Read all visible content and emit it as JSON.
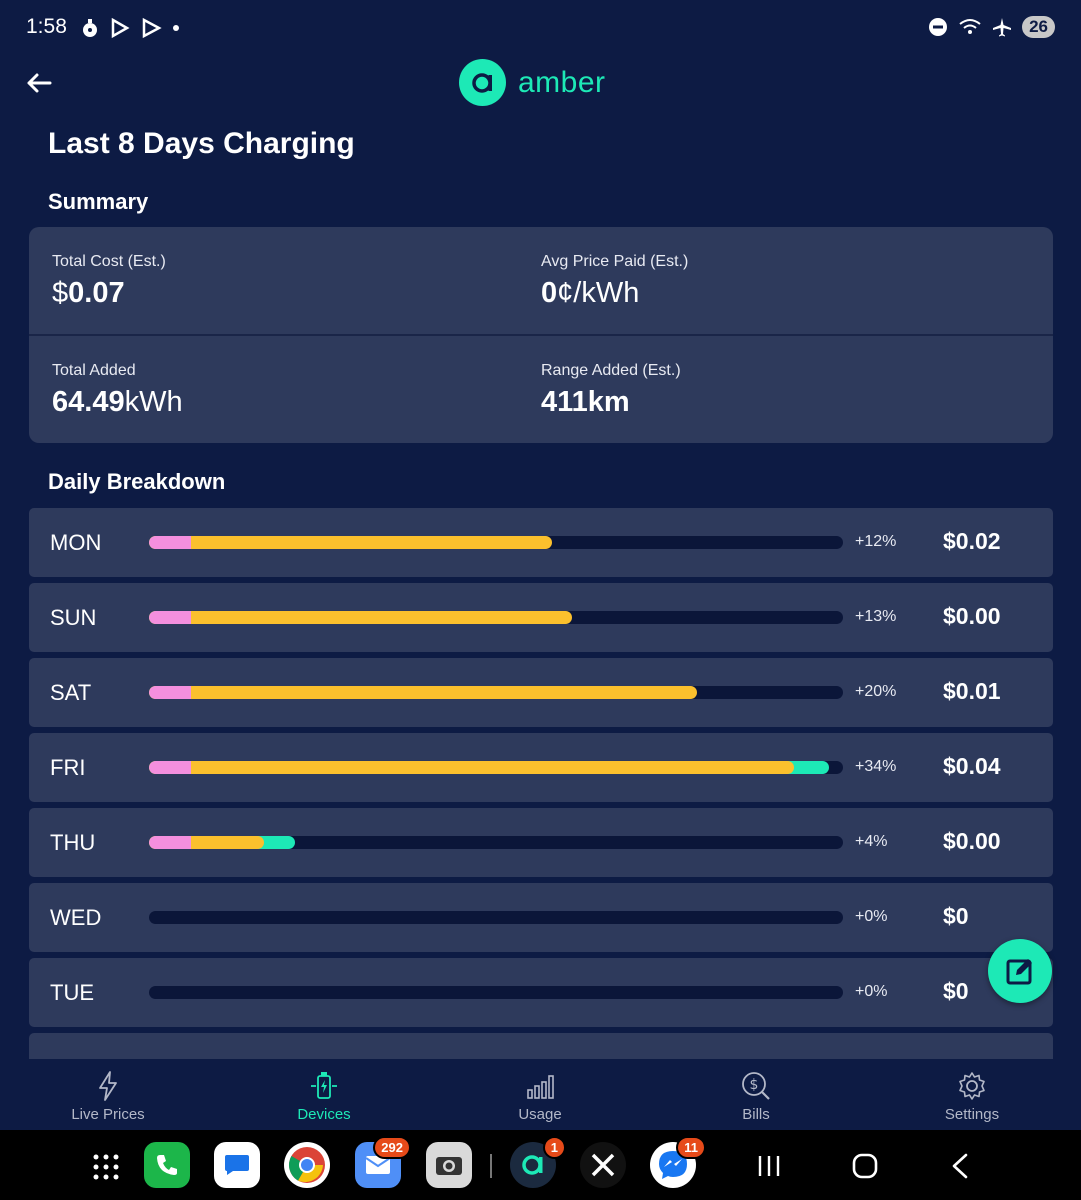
{
  "status_bar": {
    "time": "1:58",
    "battery": "26"
  },
  "header": {
    "logo_text": "amber",
    "title": "Last 8 Days Charging"
  },
  "summary": {
    "title": "Summary",
    "total_cost": {
      "label": "Total Cost (Est.)",
      "prefix": "$",
      "value": "0.07",
      "unit": ""
    },
    "avg_price": {
      "label": "Avg Price Paid (Est.)",
      "prefix": "",
      "value": "0",
      "unit": "¢/kWh"
    },
    "total_added": {
      "label": "Total Added",
      "prefix": "",
      "value": "64.49",
      "unit": "kWh"
    },
    "range_added": {
      "label": "Range Added (Est.)",
      "prefix": "",
      "value": "411km",
      "unit": ""
    }
  },
  "daily": {
    "title": "Daily Breakdown",
    "rows": [
      {
        "day": "MON",
        "pct": "+12%",
        "cost_prefix": "$",
        "cost": "0.02",
        "bar": {
          "pink": 0.06,
          "yellow": 0.58,
          "green": 0.41
        }
      },
      {
        "day": "SUN",
        "pct": "+13%",
        "cost_prefix": "$",
        "cost": "0.00",
        "bar": {
          "pink": 0.06,
          "yellow": 0.61,
          "green": 0.445
        }
      },
      {
        "day": "SAT",
        "pct": "+20%",
        "cost_prefix": "$",
        "cost": "0.01",
        "bar": {
          "pink": 0.06,
          "yellow": 0.79,
          "green": 0.62
        }
      },
      {
        "day": "FRI",
        "pct": "+34%",
        "cost_prefix": "$",
        "cost": "0.04",
        "bar": {
          "pink": 0.06,
          "yellow": 0.93,
          "green": 0.98
        }
      },
      {
        "day": "THU",
        "pct": "+4%",
        "cost_prefix": "$",
        "cost": "0.00",
        "bar": {
          "pink": 0.06,
          "yellow": 0.165,
          "green": 0.21
        }
      },
      {
        "day": "WED",
        "pct": "+0%",
        "cost_prefix": "$",
        "cost": "0",
        "bar": {
          "pink": 0,
          "yellow": 0,
          "green": 0
        }
      },
      {
        "day": "TUE",
        "pct": "+0%",
        "cost_prefix": "$",
        "cost": "0",
        "bar": {
          "pink": 0,
          "yellow": 0,
          "green": 0
        }
      }
    ]
  },
  "nav": {
    "items": [
      {
        "label": "Live Prices",
        "icon": "lightning-icon",
        "active": false
      },
      {
        "label": "Devices",
        "icon": "ev-charger-icon",
        "active": true
      },
      {
        "label": "Usage",
        "icon": "bar-chart-icon",
        "active": false
      },
      {
        "label": "Bills",
        "icon": "dollar-search-icon",
        "active": false
      },
      {
        "label": "Settings",
        "icon": "gear-icon",
        "active": false
      }
    ]
  },
  "system_bar": {
    "badges": {
      "email": "292",
      "amber": "1",
      "messenger": "11"
    }
  },
  "colors": {
    "background": "#0d1b44",
    "card": "#2e3a5c",
    "accent": "#1de9b6",
    "pink": "#f48fde",
    "yellow": "#fbc02d"
  }
}
